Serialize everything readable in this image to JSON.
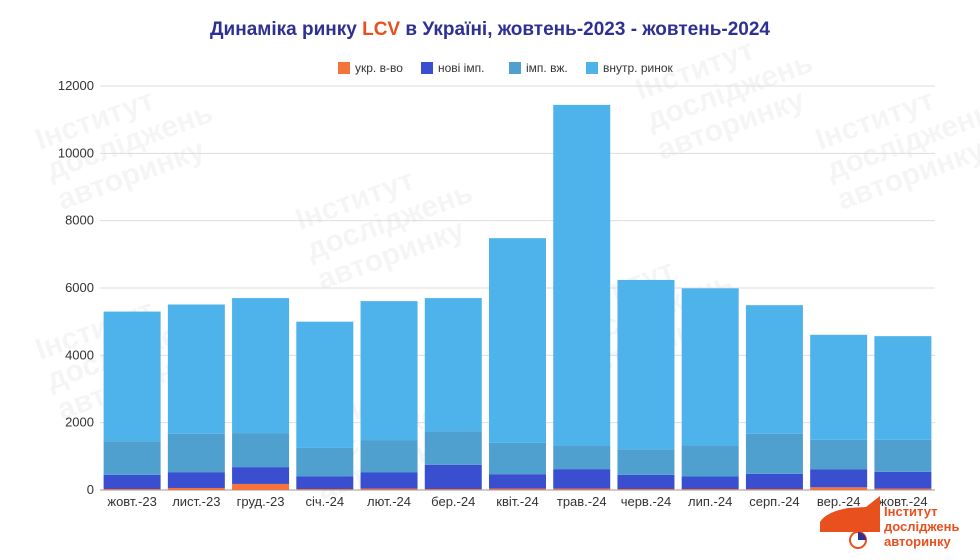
{
  "chart_data": {
    "type": "bar",
    "stacked": true,
    "title_parts": [
      "Динаміка ринку ",
      "LCV",
      " в Україні, жовтень-2023 - жовтень-2024"
    ],
    "categories": [
      "жовт.-23",
      "лист.-23",
      "груд.-23",
      "січ.-24",
      "лют.-24",
      "бер.-24",
      "квіт.-24",
      "трав.-24",
      "черв.-24",
      "лип.-24",
      "серп.-24",
      "вер.-24",
      "жовт.-24"
    ],
    "series": [
      {
        "name": "укр. в-во",
        "color": "#f4743b",
        "values": [
          30,
          60,
          180,
          30,
          40,
          30,
          40,
          40,
          30,
          30,
          30,
          80,
          40
        ]
      },
      {
        "name": "нові імп.",
        "color": "#3a4fcf",
        "values": [
          420,
          470,
          500,
          380,
          480,
          720,
          430,
          580,
          420,
          370,
          450,
          530,
          500
        ]
      },
      {
        "name": "імп. вж.",
        "color": "#4f9fcf",
        "values": [
          1000,
          1140,
          1010,
          840,
          950,
          990,
          930,
          700,
          760,
          920,
          1190,
          880,
          950
        ]
      },
      {
        "name": "внутр. ринок",
        "color": "#4db3ea",
        "values": [
          3850,
          3840,
          4010,
          3750,
          4140,
          3960,
          6080,
          10120,
          5030,
          4670,
          3820,
          3120,
          3080
        ]
      }
    ],
    "ylim": [
      0,
      12000
    ],
    "yticks": [
      "0",
      "2000",
      "4000",
      "6000",
      "8000",
      "10000",
      "12000"
    ],
    "grid": true,
    "legend_position": "top"
  },
  "colors": {
    "title": "#2e3192",
    "title_accent": "#e8501e",
    "grid": "#dddddd",
    "logo": "#e8501e"
  },
  "logo": {
    "lines": [
      "Інститут",
      "досліджень",
      "авторинку"
    ],
    "icon": "car-logo-icon"
  }
}
